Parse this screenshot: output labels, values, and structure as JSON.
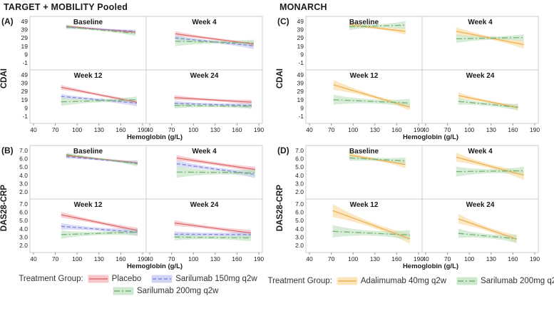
{
  "header": {
    "left_title": "TARGET + MOBILITY Pooled",
    "right_title": "MONARCH"
  },
  "axis": {
    "x_label": "Hemoglobin (g/L)"
  },
  "legend_left": {
    "label": "Treatment Group:",
    "entries": [
      {
        "key": "placebo",
        "label": "Placebo"
      },
      {
        "key": "sarilumab150",
        "label": "Sarilumab 150mg q2w"
      },
      {
        "key": "sarilumab200",
        "label": "Sarilumab 200mg q2w"
      }
    ]
  },
  "legend_right": {
    "label": "Treatment Group:",
    "entries": [
      {
        "key": "adalimumab",
        "label": "Adalimumab 40mg q2w"
      },
      {
        "key": "sarilumab200",
        "label": "Sarilumab 200mg q2w"
      }
    ]
  },
  "styles": {
    "placebo": {
      "line": "#DD6A6A",
      "band": "#F3B3B8",
      "dash": "",
      "band_opacity": 0.6
    },
    "sarilumab150": {
      "line": "#8285DB",
      "band": "#C3C5F1",
      "dash": "5,3",
      "band_opacity": 0.6
    },
    "sarilumab200": {
      "line": "#77B377",
      "band": "#BCE0BC",
      "dash": "8,3,2,3",
      "band_opacity": 0.6
    },
    "adalimumab": {
      "line": "#EFAF54",
      "band": "#F9DCA2",
      "dash": "",
      "band_opacity": 0.65
    }
  },
  "chart_data": [
    {
      "type": "line",
      "panel_tag": "(A)",
      "study": "TARGET + MOBILITY Pooled",
      "ylabel": "CDAI",
      "xlabel": "Hemoglobin (g/L)",
      "xlim": [
        40,
        190
      ],
      "xticks": [
        40,
        70,
        100,
        130,
        160,
        190
      ],
      "yticks": [
        49,
        39,
        29,
        19,
        9,
        -1
      ],
      "ytick_format": "int",
      "subplots": [
        {
          "title": "Baseline",
          "series": [
            {
              "key": "placebo",
              "x": [
                85,
                180
              ],
              "y": [
                43,
                36
              ],
              "band": [
                2,
                1,
                2
              ]
            },
            {
              "key": "sarilumab150",
              "x": [
                85,
                180
              ],
              "y": [
                42,
                37
              ],
              "band": [
                2,
                1,
                2
              ]
            },
            {
              "key": "sarilumab200",
              "x": [
                85,
                180
              ],
              "y": [
                42.5,
                34.5
              ],
              "band": [
                2.5,
                1,
                3
              ]
            }
          ]
        },
        {
          "title": "Week 4",
          "series": [
            {
              "key": "placebo",
              "x": [
                75,
                183
              ],
              "y": [
                34,
                21.5
              ],
              "band": [
                3,
                1.5,
                3
              ]
            },
            {
              "key": "sarilumab150",
              "x": [
                75,
                183
              ],
              "y": [
                29,
                19.5
              ],
              "band": [
                3,
                1.5,
                4
              ]
            },
            {
              "key": "sarilumab200",
              "x": [
                75,
                183
              ],
              "y": [
                25,
                23
              ],
              "band": [
                6,
                2,
                4
              ]
            }
          ]
        },
        {
          "title": "Week 12",
          "series": [
            {
              "key": "placebo",
              "x": [
                78,
                182
              ],
              "y": [
                34,
                16
              ],
              "band": [
                3,
                1.5,
                3
              ]
            },
            {
              "key": "sarilumab150",
              "x": [
                78,
                182
              ],
              "y": [
                23,
                15
              ],
              "band": [
                3,
                1.5,
                4
              ]
            },
            {
              "key": "sarilumab200",
              "x": [
                78,
                182
              ],
              "y": [
                16.5,
                19
              ],
              "band": [
                5,
                2,
                4
              ]
            }
          ]
        },
        {
          "title": "Week 24",
          "series": [
            {
              "key": "placebo",
              "x": [
                74,
                180
              ],
              "y": [
                21.5,
                16
              ],
              "band": [
                3,
                1.5,
                3
              ]
            },
            {
              "key": "sarilumab150",
              "x": [
                74,
                180
              ],
              "y": [
                14.5,
                12
              ],
              "band": [
                3,
                1.5,
                3
              ]
            },
            {
              "key": "sarilumab200",
              "x": [
                74,
                180
              ],
              "y": [
                12,
                11
              ],
              "band": [
                3.5,
                1.5,
                3
              ]
            }
          ]
        }
      ]
    },
    {
      "type": "line",
      "panel_tag": "(B)",
      "study": "TARGET + MOBILITY Pooled",
      "ylabel": "DAS28-CRP",
      "xlabel": "Hemoglobin (g/L)",
      "xlim": [
        40,
        190
      ],
      "xticks": [
        40,
        70,
        100,
        130,
        160,
        190
      ],
      "yticks": [
        7,
        6,
        5,
        4,
        3,
        2
      ],
      "ytick_format": "1dp",
      "subplots": [
        {
          "title": "Baseline",
          "series": [
            {
              "key": "placebo",
              "x": [
                85,
                183
              ],
              "y": [
                6.4,
                5.5
              ],
              "band": [
                0.2,
                0.1,
                0.25
              ]
            },
            {
              "key": "sarilumab150",
              "x": [
                85,
                183
              ],
              "y": [
                6.25,
                5.5
              ],
              "band": [
                0.2,
                0.1,
                0.25
              ]
            },
            {
              "key": "sarilumab200",
              "x": [
                85,
                183
              ],
              "y": [
                6.5,
                5.4
              ],
              "band": [
                0.25,
                0.1,
                0.3
              ]
            }
          ]
        },
        {
          "title": "Week 4",
          "series": [
            {
              "key": "placebo",
              "x": [
                77,
                185
              ],
              "y": [
                6.1,
                4.7
              ],
              "band": [
                0.35,
                0.2,
                0.35
              ]
            },
            {
              "key": "sarilumab150",
              "x": [
                77,
                185
              ],
              "y": [
                5.4,
                4.1
              ],
              "band": [
                0.4,
                0.2,
                0.45
              ]
            },
            {
              "key": "sarilumab200",
              "x": [
                77,
                185
              ],
              "y": [
                4.4,
                4.3
              ],
              "band": [
                0.7,
                0.25,
                0.45
              ]
            }
          ]
        },
        {
          "title": "Week 12",
          "series": [
            {
              "key": "placebo",
              "x": [
                78,
                183
              ],
              "y": [
                5.7,
                3.8
              ],
              "band": [
                0.35,
                0.2,
                0.35
              ]
            },
            {
              "key": "sarilumab150",
              "x": [
                78,
                183
              ],
              "y": [
                4.3,
                3.6
              ],
              "band": [
                0.4,
                0.2,
                0.45
              ]
            },
            {
              "key": "sarilumab200",
              "x": [
                78,
                183
              ],
              "y": [
                3.3,
                3.6
              ],
              "band": [
                0.5,
                0.2,
                0.45
              ]
            }
          ]
        },
        {
          "title": "Week 24",
          "series": [
            {
              "key": "placebo",
              "x": [
                74,
                179
              ],
              "y": [
                4.7,
                3.5
              ],
              "band": [
                0.35,
                0.2,
                0.4
              ]
            },
            {
              "key": "sarilumab150",
              "x": [
                74,
                179
              ],
              "y": [
                3.35,
                3.3
              ],
              "band": [
                0.35,
                0.2,
                0.4
              ]
            },
            {
              "key": "sarilumab200",
              "x": [
                74,
                179
              ],
              "y": [
                3.0,
                2.9
              ],
              "band": [
                0.4,
                0.2,
                0.4
              ]
            }
          ]
        }
      ]
    },
    {
      "type": "line",
      "panel_tag": "(C)",
      "study": "MONARCH",
      "ylabel": "CDAI",
      "xlabel": "Hemoglobin (g/L)",
      "xlim": [
        40,
        190
      ],
      "xticks": [
        40,
        70,
        100,
        130,
        160,
        190
      ],
      "yticks": [
        49,
        39,
        29,
        19,
        9,
        -1
      ],
      "ytick_format": "int",
      "subplots": [
        {
          "title": "Baseline",
          "series": [
            {
              "key": "adalimumab",
              "x": [
                95,
                172
              ],
              "y": [
                45,
                37
              ],
              "band": [
                3.5,
                1.5,
                4
              ]
            },
            {
              "key": "sarilumab200",
              "x": [
                95,
                172
              ],
              "y": [
                42.5,
                44.5
              ],
              "band": [
                4,
                2,
                5
              ]
            }
          ]
        },
        {
          "title": "Week 4",
          "series": [
            {
              "key": "adalimumab",
              "x": [
                82,
                175
              ],
              "y": [
                37,
                21
              ],
              "band": [
                5,
                2,
                5
              ]
            },
            {
              "key": "sarilumab200",
              "x": [
                82,
                175
              ],
              "y": [
                28,
                29.5
              ],
              "band": [
                5,
                2,
                4
              ]
            }
          ]
        },
        {
          "title": "Week 12",
          "series": [
            {
              "key": "adalimumab",
              "x": [
                73,
                178
              ],
              "y": [
                37,
                10
              ],
              "band": [
                6,
                2,
                4
              ]
            },
            {
              "key": "sarilumab200",
              "x": [
                73,
                178
              ],
              "y": [
                19,
                15
              ],
              "band": [
                6,
                2.5,
                5
              ]
            }
          ]
        },
        {
          "title": "Week 24",
          "series": [
            {
              "key": "adalimumab",
              "x": [
                85,
                167
              ],
              "y": [
                24,
                9.5
              ],
              "band": [
                4,
                1.5,
                3.5
              ]
            },
            {
              "key": "sarilumab200",
              "x": [
                85,
                167
              ],
              "y": [
                17,
                10
              ],
              "band": [
                4,
                2,
                4
              ]
            }
          ]
        }
      ]
    },
    {
      "type": "line",
      "panel_tag": "(D)",
      "study": "MONARCH",
      "ylabel": "DAS28-CRP",
      "xlabel": "Hemoglobin (g/L)",
      "xlim": [
        40,
        190
      ],
      "xticks": [
        40,
        70,
        100,
        130,
        160,
        190
      ],
      "yticks": [
        7,
        6,
        5,
        4,
        3,
        2
      ],
      "ytick_format": "1dp",
      "subplots": [
        {
          "title": "Baseline",
          "series": [
            {
              "key": "adalimumab",
              "x": [
                95,
                172
              ],
              "y": [
                6.45,
                5.3
              ],
              "band": [
                0.4,
                0.15,
                0.45
              ]
            },
            {
              "key": "sarilumab200",
              "x": [
                95,
                172
              ],
              "y": [
                6.1,
                5.75
              ],
              "band": [
                0.35,
                0.2,
                0.4
              ]
            }
          ]
        },
        {
          "title": "Week 4",
          "series": [
            {
              "key": "adalimumab",
              "x": [
                82,
                175
              ],
              "y": [
                6.2,
                4.0
              ],
              "band": [
                0.55,
                0.25,
                0.55
              ]
            },
            {
              "key": "sarilumab200",
              "x": [
                82,
                175
              ],
              "y": [
                4.45,
                4.55
              ],
              "band": [
                0.6,
                0.25,
                0.5
              ]
            }
          ]
        },
        {
          "title": "Week 12",
          "series": [
            {
              "key": "adalimumab",
              "x": [
                72,
                178
              ],
              "y": [
                6.2,
                2.8
              ],
              "band": [
                0.8,
                0.3,
                0.6
              ]
            },
            {
              "key": "sarilumab200",
              "x": [
                72,
                178
              ],
              "y": [
                3.7,
                3.25
              ],
              "band": [
                0.75,
                0.3,
                0.6
              ]
            }
          ]
        },
        {
          "title": "Week 24",
          "series": [
            {
              "key": "adalimumab",
              "x": [
                85,
                165
              ],
              "y": [
                5.2,
                2.75
              ],
              "band": [
                0.6,
                0.25,
                0.5
              ]
            },
            {
              "key": "sarilumab200",
              "x": [
                85,
                165
              ],
              "y": [
                3.45,
                2.8
              ],
              "band": [
                0.55,
                0.25,
                0.5
              ]
            }
          ]
        }
      ]
    }
  ]
}
